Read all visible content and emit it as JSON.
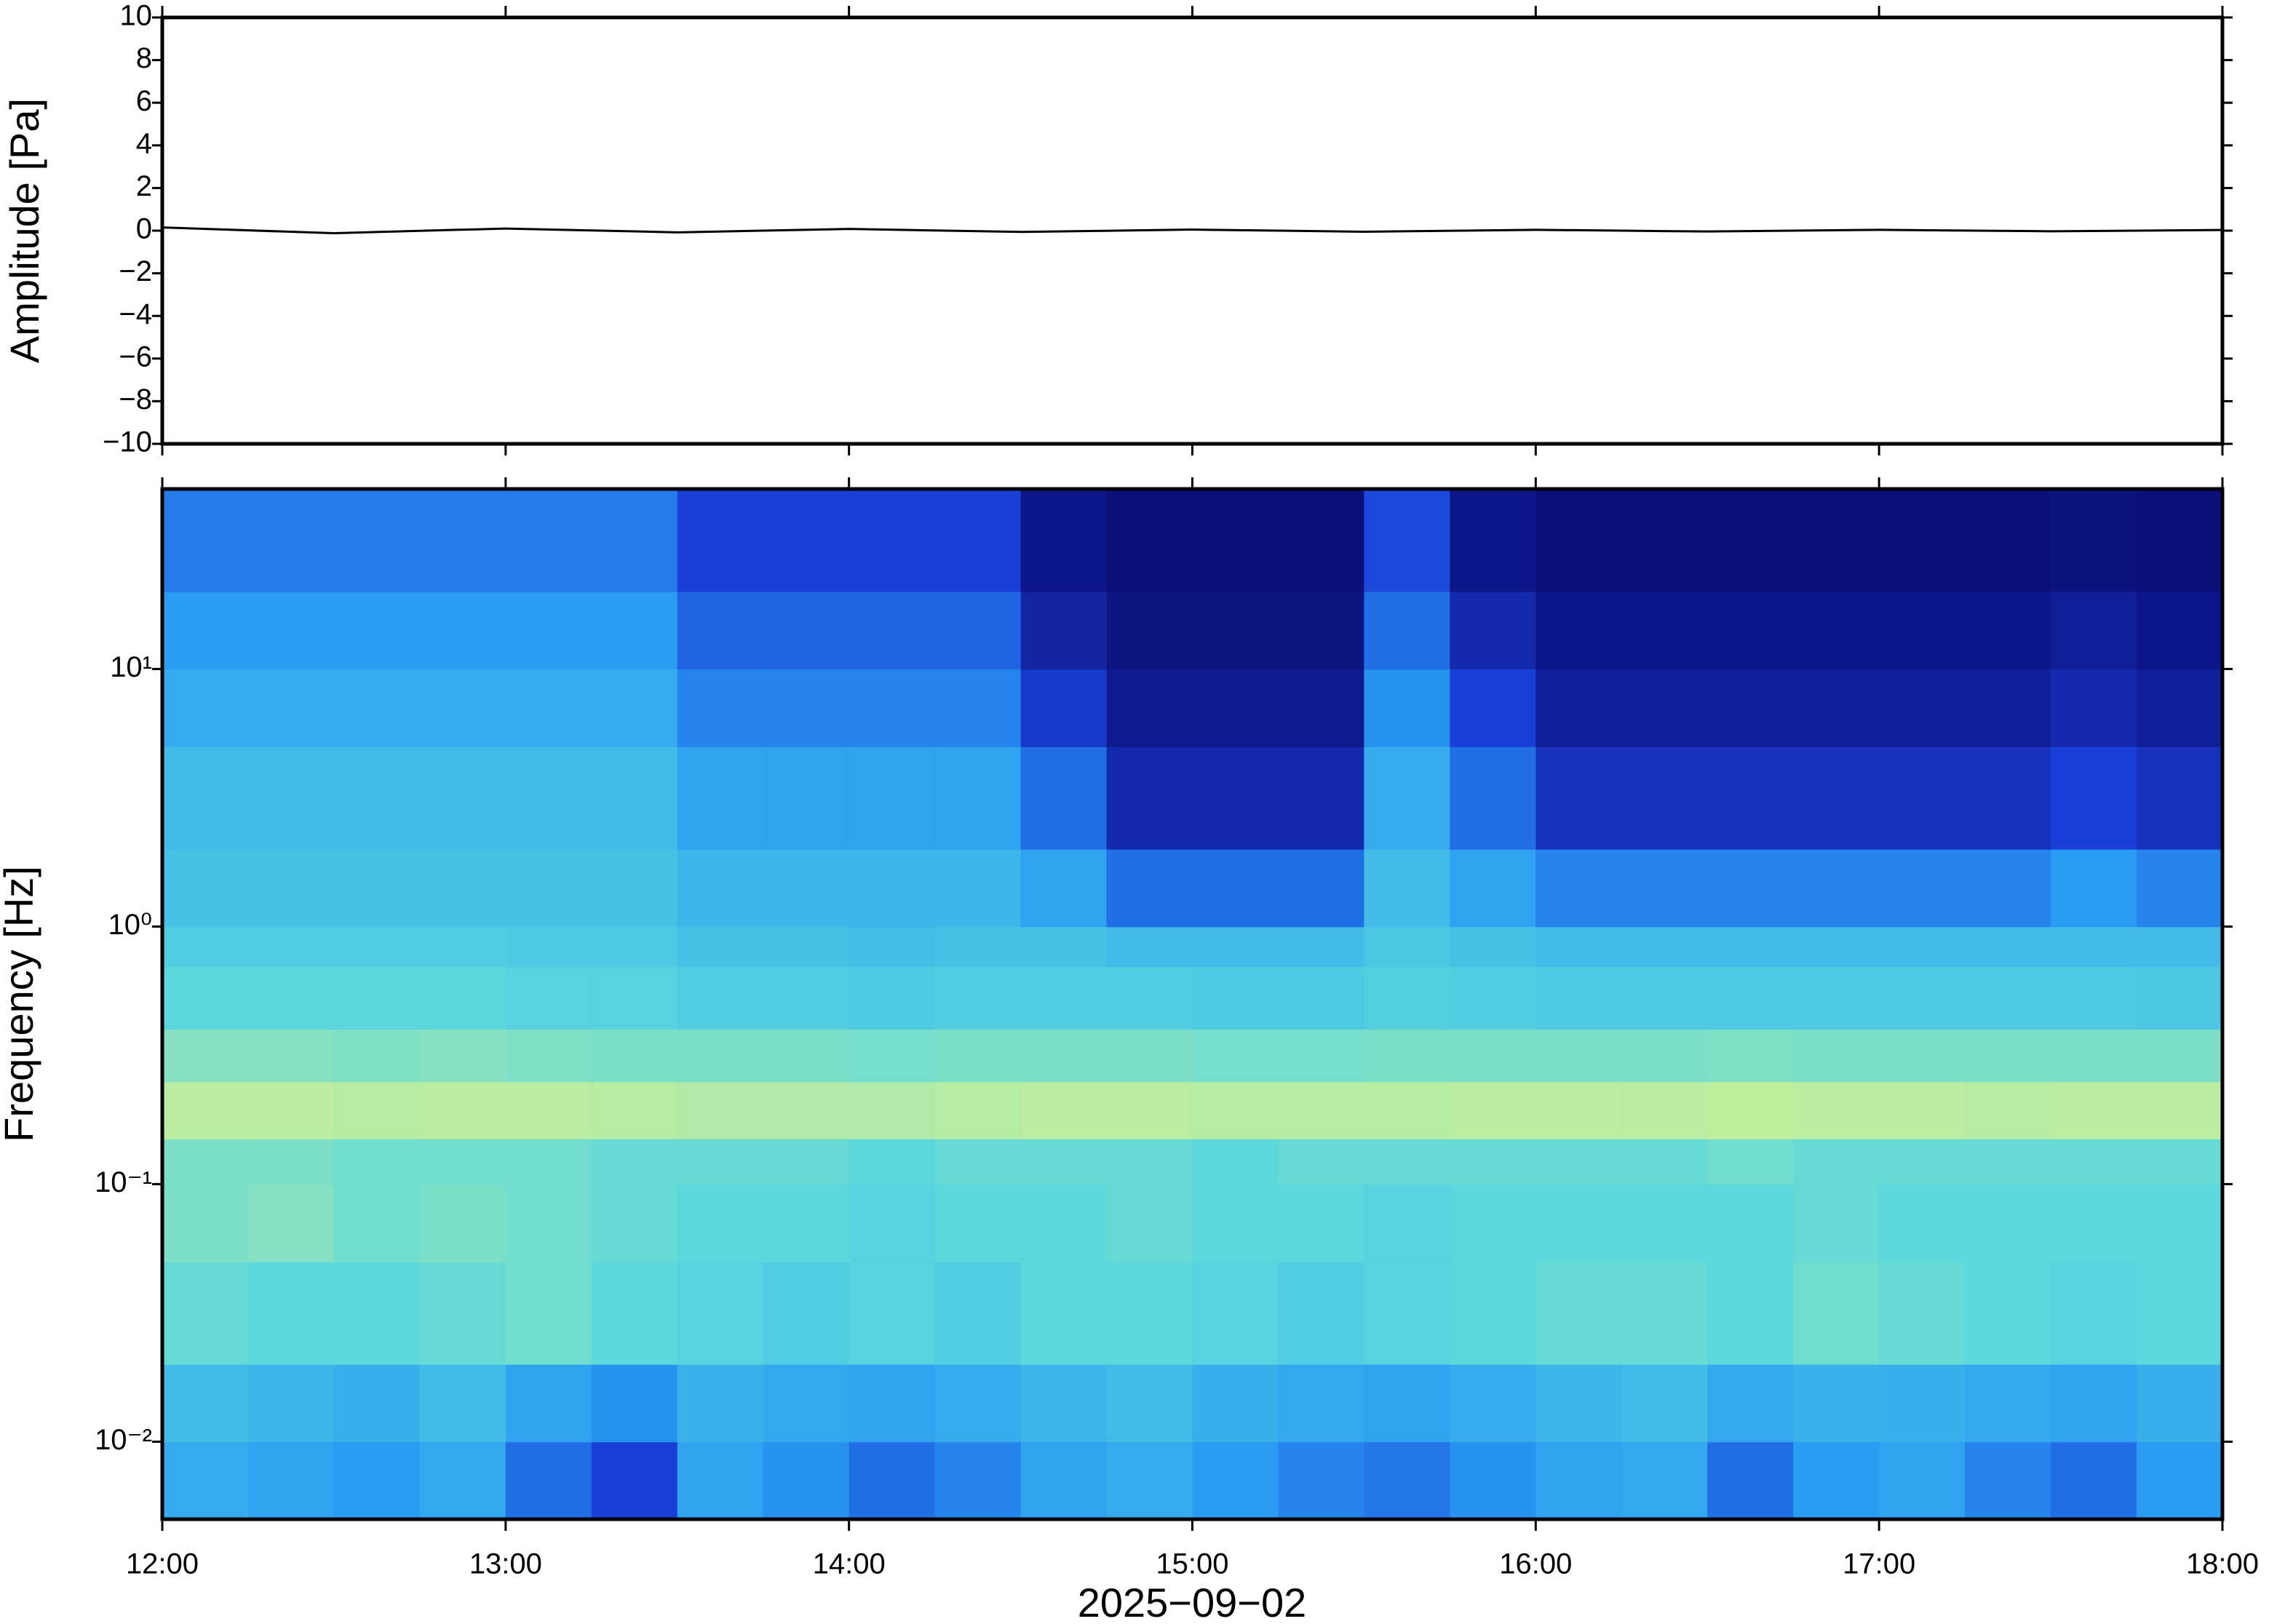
{
  "chart_data": [
    {
      "type": "line",
      "ylabel": "Amplitude [Pa]",
      "x": [
        "12:00",
        "12:30",
        "13:00",
        "13:30",
        "14:00",
        "14:30",
        "15:00",
        "15:30",
        "16:00",
        "16:30",
        "17:00",
        "17:30",
        "18:00"
      ],
      "series": [
        {
          "color": "#000000",
          "values": [
            0.15,
            -0.12,
            0.1,
            -0.08,
            0.08,
            -0.06,
            0.05,
            -0.05,
            0.04,
            -0.04,
            0.04,
            -0.03,
            0.03
          ]
        }
      ],
      "xlim": [
        "12:00",
        "18:00"
      ],
      "ylim": [
        -10,
        10
      ],
      "yticks": [
        {
          "value": -10,
          "label": "−10"
        },
        {
          "value": -8,
          "label": "−8"
        },
        {
          "value": -6,
          "label": "−6"
        },
        {
          "value": -4,
          "label": "−4"
        },
        {
          "value": -2,
          "label": "−2"
        },
        0,
        2,
        4,
        6,
        8,
        10
      ]
    },
    {
      "type": "heatmap",
      "ylabel": "Frequency [Hz]",
      "xlabel": "2025−09−02",
      "log_y": true,
      "xlim": [
        "12:00",
        "18:00"
      ],
      "xticks": [
        "12:00",
        "13:00",
        "14:00",
        "15:00",
        "16:00",
        "17:00",
        "18:00"
      ],
      "ylim": [
        0.005,
        50
      ],
      "yticks": [
        {
          "value": 0.01,
          "label": "10⁻²"
        },
        {
          "value": 0.1,
          "label": "10⁻¹"
        },
        {
          "value": 1,
          "label": "10⁰"
        },
        {
          "value": 10,
          "label": "10¹"
        }
      ],
      "colorscale": [
        "#0a0a6e",
        "#1a3fd8",
        "#2a9cf2",
        "#5cd8dc",
        "#c4ef9a",
        "#f2e48a"
      ],
      "x_edges": [
        "12:00",
        "12:15",
        "12:30",
        "12:45",
        "13:00",
        "13:15",
        "13:30",
        "13:45",
        "14:00",
        "14:15",
        "14:30",
        "14:45",
        "15:00",
        "15:15",
        "15:30",
        "15:45",
        "16:00",
        "16:15",
        "16:30",
        "16:45",
        "17:00",
        "17:15",
        "17:30",
        "17:45",
        "18:00"
      ],
      "y_edges": [
        0.005,
        0.01,
        0.02,
        0.05,
        0.1,
        0.15,
        0.25,
        0.4,
        0.7,
        1,
        2,
        5,
        10,
        20,
        50
      ],
      "z": [
        [
          0.45,
          0.42,
          0.4,
          0.44,
          0.3,
          0.2,
          0.42,
          0.38,
          0.3,
          0.35,
          0.42,
          0.45,
          0.4,
          0.35,
          0.32,
          0.38,
          0.42,
          0.44,
          0.3,
          0.4,
          0.42,
          0.35,
          0.3,
          0.4
        ],
        [
          0.5,
          0.48,
          0.46,
          0.5,
          0.42,
          0.38,
          0.47,
          0.44,
          0.42,
          0.45,
          0.48,
          0.5,
          0.46,
          0.44,
          0.42,
          0.45,
          0.48,
          0.5,
          0.44,
          0.47,
          0.46,
          0.44,
          0.42,
          0.46
        ],
        [
          0.62,
          0.6,
          0.6,
          0.62,
          0.64,
          0.6,
          0.58,
          0.56,
          0.58,
          0.56,
          0.6,
          0.6,
          0.58,
          0.56,
          0.58,
          0.6,
          0.62,
          0.62,
          0.6,
          0.64,
          0.62,
          0.6,
          0.58,
          0.6
        ],
        [
          0.66,
          0.68,
          0.64,
          0.66,
          0.64,
          0.62,
          0.6,
          0.6,
          0.58,
          0.6,
          0.6,
          0.62,
          0.6,
          0.6,
          0.58,
          0.6,
          0.6,
          0.6,
          0.6,
          0.62,
          0.6,
          0.6,
          0.6,
          0.6
        ],
        [
          0.66,
          0.66,
          0.64,
          0.64,
          0.64,
          0.62,
          0.62,
          0.62,
          0.6,
          0.62,
          0.62,
          0.62,
          0.6,
          0.62,
          0.62,
          0.62,
          0.62,
          0.62,
          0.64,
          0.62,
          0.62,
          0.62,
          0.62,
          0.62
        ],
        [
          0.78,
          0.78,
          0.77,
          0.78,
          0.78,
          0.77,
          0.76,
          0.76,
          0.76,
          0.77,
          0.78,
          0.78,
          0.77,
          0.77,
          0.77,
          0.78,
          0.78,
          0.78,
          0.79,
          0.78,
          0.78,
          0.77,
          0.78,
          0.78
        ],
        [
          0.68,
          0.68,
          0.67,
          0.68,
          0.67,
          0.66,
          0.66,
          0.66,
          0.65,
          0.66,
          0.66,
          0.66,
          0.65,
          0.65,
          0.66,
          0.66,
          0.66,
          0.66,
          0.67,
          0.66,
          0.66,
          0.66,
          0.66,
          0.66
        ],
        [
          0.6,
          0.6,
          0.6,
          0.6,
          0.58,
          0.58,
          0.56,
          0.56,
          0.55,
          0.56,
          0.56,
          0.56,
          0.55,
          0.55,
          0.57,
          0.56,
          0.55,
          0.55,
          0.55,
          0.55,
          0.55,
          0.55,
          0.55,
          0.54
        ],
        [
          0.56,
          0.56,
          0.56,
          0.56,
          0.55,
          0.55,
          0.52,
          0.52,
          0.51,
          0.52,
          0.52,
          0.5,
          0.5,
          0.5,
          0.54,
          0.52,
          0.5,
          0.5,
          0.5,
          0.5,
          0.5,
          0.5,
          0.5,
          0.5
        ],
        [
          0.52,
          0.52,
          0.52,
          0.52,
          0.52,
          0.52,
          0.48,
          0.48,
          0.48,
          0.48,
          0.42,
          0.3,
          0.3,
          0.3,
          0.5,
          0.42,
          0.35,
          0.35,
          0.35,
          0.35,
          0.35,
          0.35,
          0.4,
          0.35
        ],
        [
          0.5,
          0.5,
          0.5,
          0.5,
          0.5,
          0.5,
          0.42,
          0.42,
          0.42,
          0.42,
          0.3,
          0.12,
          0.12,
          0.12,
          0.45,
          0.3,
          0.15,
          0.15,
          0.15,
          0.15,
          0.15,
          0.15,
          0.2,
          0.15
        ],
        [
          0.45,
          0.45,
          0.45,
          0.45,
          0.45,
          0.45,
          0.35,
          0.35,
          0.35,
          0.35,
          0.18,
          0.06,
          0.06,
          0.06,
          0.38,
          0.2,
          0.08,
          0.08,
          0.08,
          0.08,
          0.08,
          0.08,
          0.12,
          0.08
        ],
        [
          0.4,
          0.4,
          0.4,
          0.4,
          0.4,
          0.4,
          0.28,
          0.28,
          0.28,
          0.28,
          0.1,
          0.04,
          0.04,
          0.04,
          0.3,
          0.12,
          0.05,
          0.05,
          0.05,
          0.05,
          0.05,
          0.05,
          0.08,
          0.05
        ],
        [
          0.33,
          0.33,
          0.33,
          0.33,
          0.33,
          0.33,
          0.2,
          0.2,
          0.2,
          0.2,
          0.05,
          0.02,
          0.02,
          0.02,
          0.22,
          0.05,
          0.02,
          0.02,
          0.02,
          0.02,
          0.02,
          0.02,
          0.03,
          0.02
        ]
      ]
    }
  ]
}
